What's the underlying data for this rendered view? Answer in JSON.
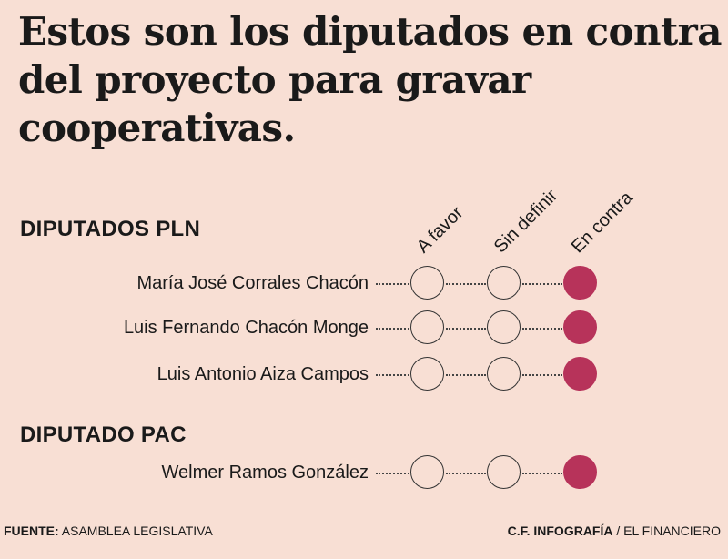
{
  "title": {
    "line1": "Estos son los diputados en contra",
    "line2": "del proyecto para gravar",
    "line3": "cooperativas."
  },
  "columns": [
    "A favor",
    "Sin definir",
    "En contra"
  ],
  "groups": [
    {
      "heading": "DIPUTADOS PLN",
      "rows": [
        {
          "name": "María José Corrales Chacón",
          "vote": "En contra"
        },
        {
          "name": "Luis Fernando Chacón Monge",
          "vote": "En contra"
        },
        {
          "name": "Luis Antonio Aiza Campos",
          "vote": "En contra"
        }
      ]
    },
    {
      "heading": "DIPUTADO PAC",
      "rows": [
        {
          "name": "Welmer Ramos González",
          "vote": "En contra"
        }
      ]
    }
  ],
  "footer": {
    "source_label": "FUENTE:",
    "source_value": "ASAMBLEA LEGISLATIVA",
    "credit_label": "C.F. INFOGRAFÍA",
    "credit_value": "/ EL FINANCIERO"
  },
  "colors": {
    "background": "#f8dfd4",
    "en_contra": "#b7335a"
  }
}
